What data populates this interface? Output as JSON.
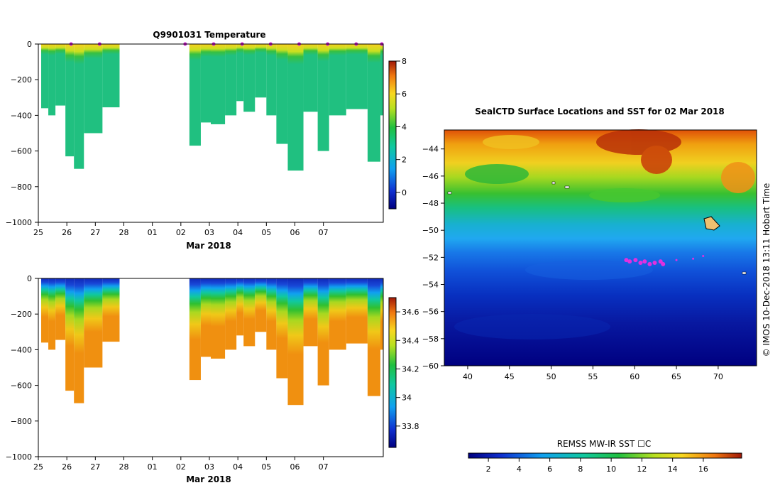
{
  "chart_data": [
    {
      "type": "heatmap",
      "title": "Q9901031  Temperature",
      "xlabel": "Mar 2018",
      "ylabel": "",
      "x_ticks": [
        "25",
        "26",
        "27",
        "28",
        "01",
        "02",
        "03",
        "04",
        "05",
        "06",
        "07"
      ],
      "y_ticks": [
        "0",
        "−200",
        "−400",
        "−600",
        "−800",
        "−1000"
      ],
      "xlim": [
        25,
        37.1
      ],
      "ylim": [
        -1000,
        0
      ],
      "colorbar_ticks": [
        "8",
        "6",
        "4",
        "2",
        "0"
      ],
      "colorbar_range": [
        -1,
        8
      ],
      "profile_markers_day": [
        26.15,
        27.15,
        30.15,
        31.15,
        32.15,
        33.15,
        34.15,
        35.15,
        36.15,
        37.05
      ],
      "profiles": [
        {
          "day": 25.1,
          "max_depth": 360
        },
        {
          "day": 25.35,
          "max_depth": 400
        },
        {
          "day": 25.6,
          "max_depth": 345
        },
        {
          "day": 25.95,
          "max_depth": 630
        },
        {
          "day": 26.25,
          "max_depth": 700
        },
        {
          "day": 26.6,
          "max_depth": 500
        },
        {
          "day": 27.25,
          "max_depth": 355
        },
        {
          "day": 30.3,
          "max_depth": 570
        },
        {
          "day": 30.7,
          "max_depth": 440
        },
        {
          "day": 31.05,
          "max_depth": 450
        },
        {
          "day": 31.55,
          "max_depth": 400
        },
        {
          "day": 31.95,
          "max_depth": 320
        },
        {
          "day": 32.2,
          "max_depth": 380
        },
        {
          "day": 32.6,
          "max_depth": 300
        },
        {
          "day": 33.0,
          "max_depth": 400
        },
        {
          "day": 33.35,
          "max_depth": 560
        },
        {
          "day": 33.75,
          "max_depth": 710
        },
        {
          "day": 34.3,
          "max_depth": 380
        },
        {
          "day": 34.8,
          "max_depth": 600
        },
        {
          "day": 35.2,
          "max_depth": 400
        },
        {
          "day": 35.8,
          "max_depth": 365
        },
        {
          "day": 36.55,
          "max_depth": 660
        },
        {
          "day": 37.0,
          "max_depth": 400
        }
      ]
    },
    {
      "type": "heatmap",
      "title": "",
      "xlabel": "Mar 2018",
      "x_ticks": [
        "25",
        "26",
        "27",
        "28",
        "01",
        "02",
        "03",
        "04",
        "05",
        "06",
        "07"
      ],
      "y_ticks": [
        "0",
        "−200",
        "−400",
        "−600",
        "−800",
        "−1000"
      ],
      "xlim": [
        25,
        37.1
      ],
      "ylim": [
        -1000,
        0
      ],
      "colorbar_ticks": [
        "34.6",
        "34.4",
        "34.2",
        "34",
        "33.8"
      ],
      "colorbar_range": [
        33.65,
        34.7
      ]
    },
    {
      "type": "heatmap",
      "title": "SealCTD Surface Locations and SST for 02 Mar 2018",
      "xlabel": "",
      "ylabel": "",
      "x_ticks": [
        "40",
        "45",
        "50",
        "55",
        "60",
        "65",
        "70"
      ],
      "y_ticks": [
        "−44",
        "−46",
        "−48",
        "−50",
        "−52",
        "−54",
        "−56",
        "−58",
        "−60"
      ],
      "xlim": [
        37.2,
        74.6
      ],
      "ylim": [
        -60,
        -42.6
      ],
      "side_label": "© IMOS 10-Dec-2018 13:11 Hobart Time",
      "colorbar_label": "REMSS MW-IR SST ☐C",
      "colorbar_ticks": [
        "2",
        "4",
        "6",
        "8",
        "10",
        "12",
        "14",
        "16"
      ],
      "colorbar_range": [
        0.7,
        18.5
      ],
      "seal_track": [
        {
          "lon": 59.0,
          "lat": -52.2
        },
        {
          "lon": 59.4,
          "lat": -52.3
        },
        {
          "lon": 60.1,
          "lat": -52.2
        },
        {
          "lon": 60.7,
          "lat": -52.4
        },
        {
          "lon": 61.2,
          "lat": -52.3
        },
        {
          "lon": 61.8,
          "lat": -52.5
        },
        {
          "lon": 62.4,
          "lat": -52.4
        },
        {
          "lon": 63.1,
          "lat": -52.3
        },
        {
          "lon": 63.4,
          "lat": -52.5
        },
        {
          "lon": 65.0,
          "lat": -52.2
        },
        {
          "lon": 67.0,
          "lat": -52.1
        },
        {
          "lon": 68.2,
          "lat": -51.9
        }
      ]
    }
  ]
}
